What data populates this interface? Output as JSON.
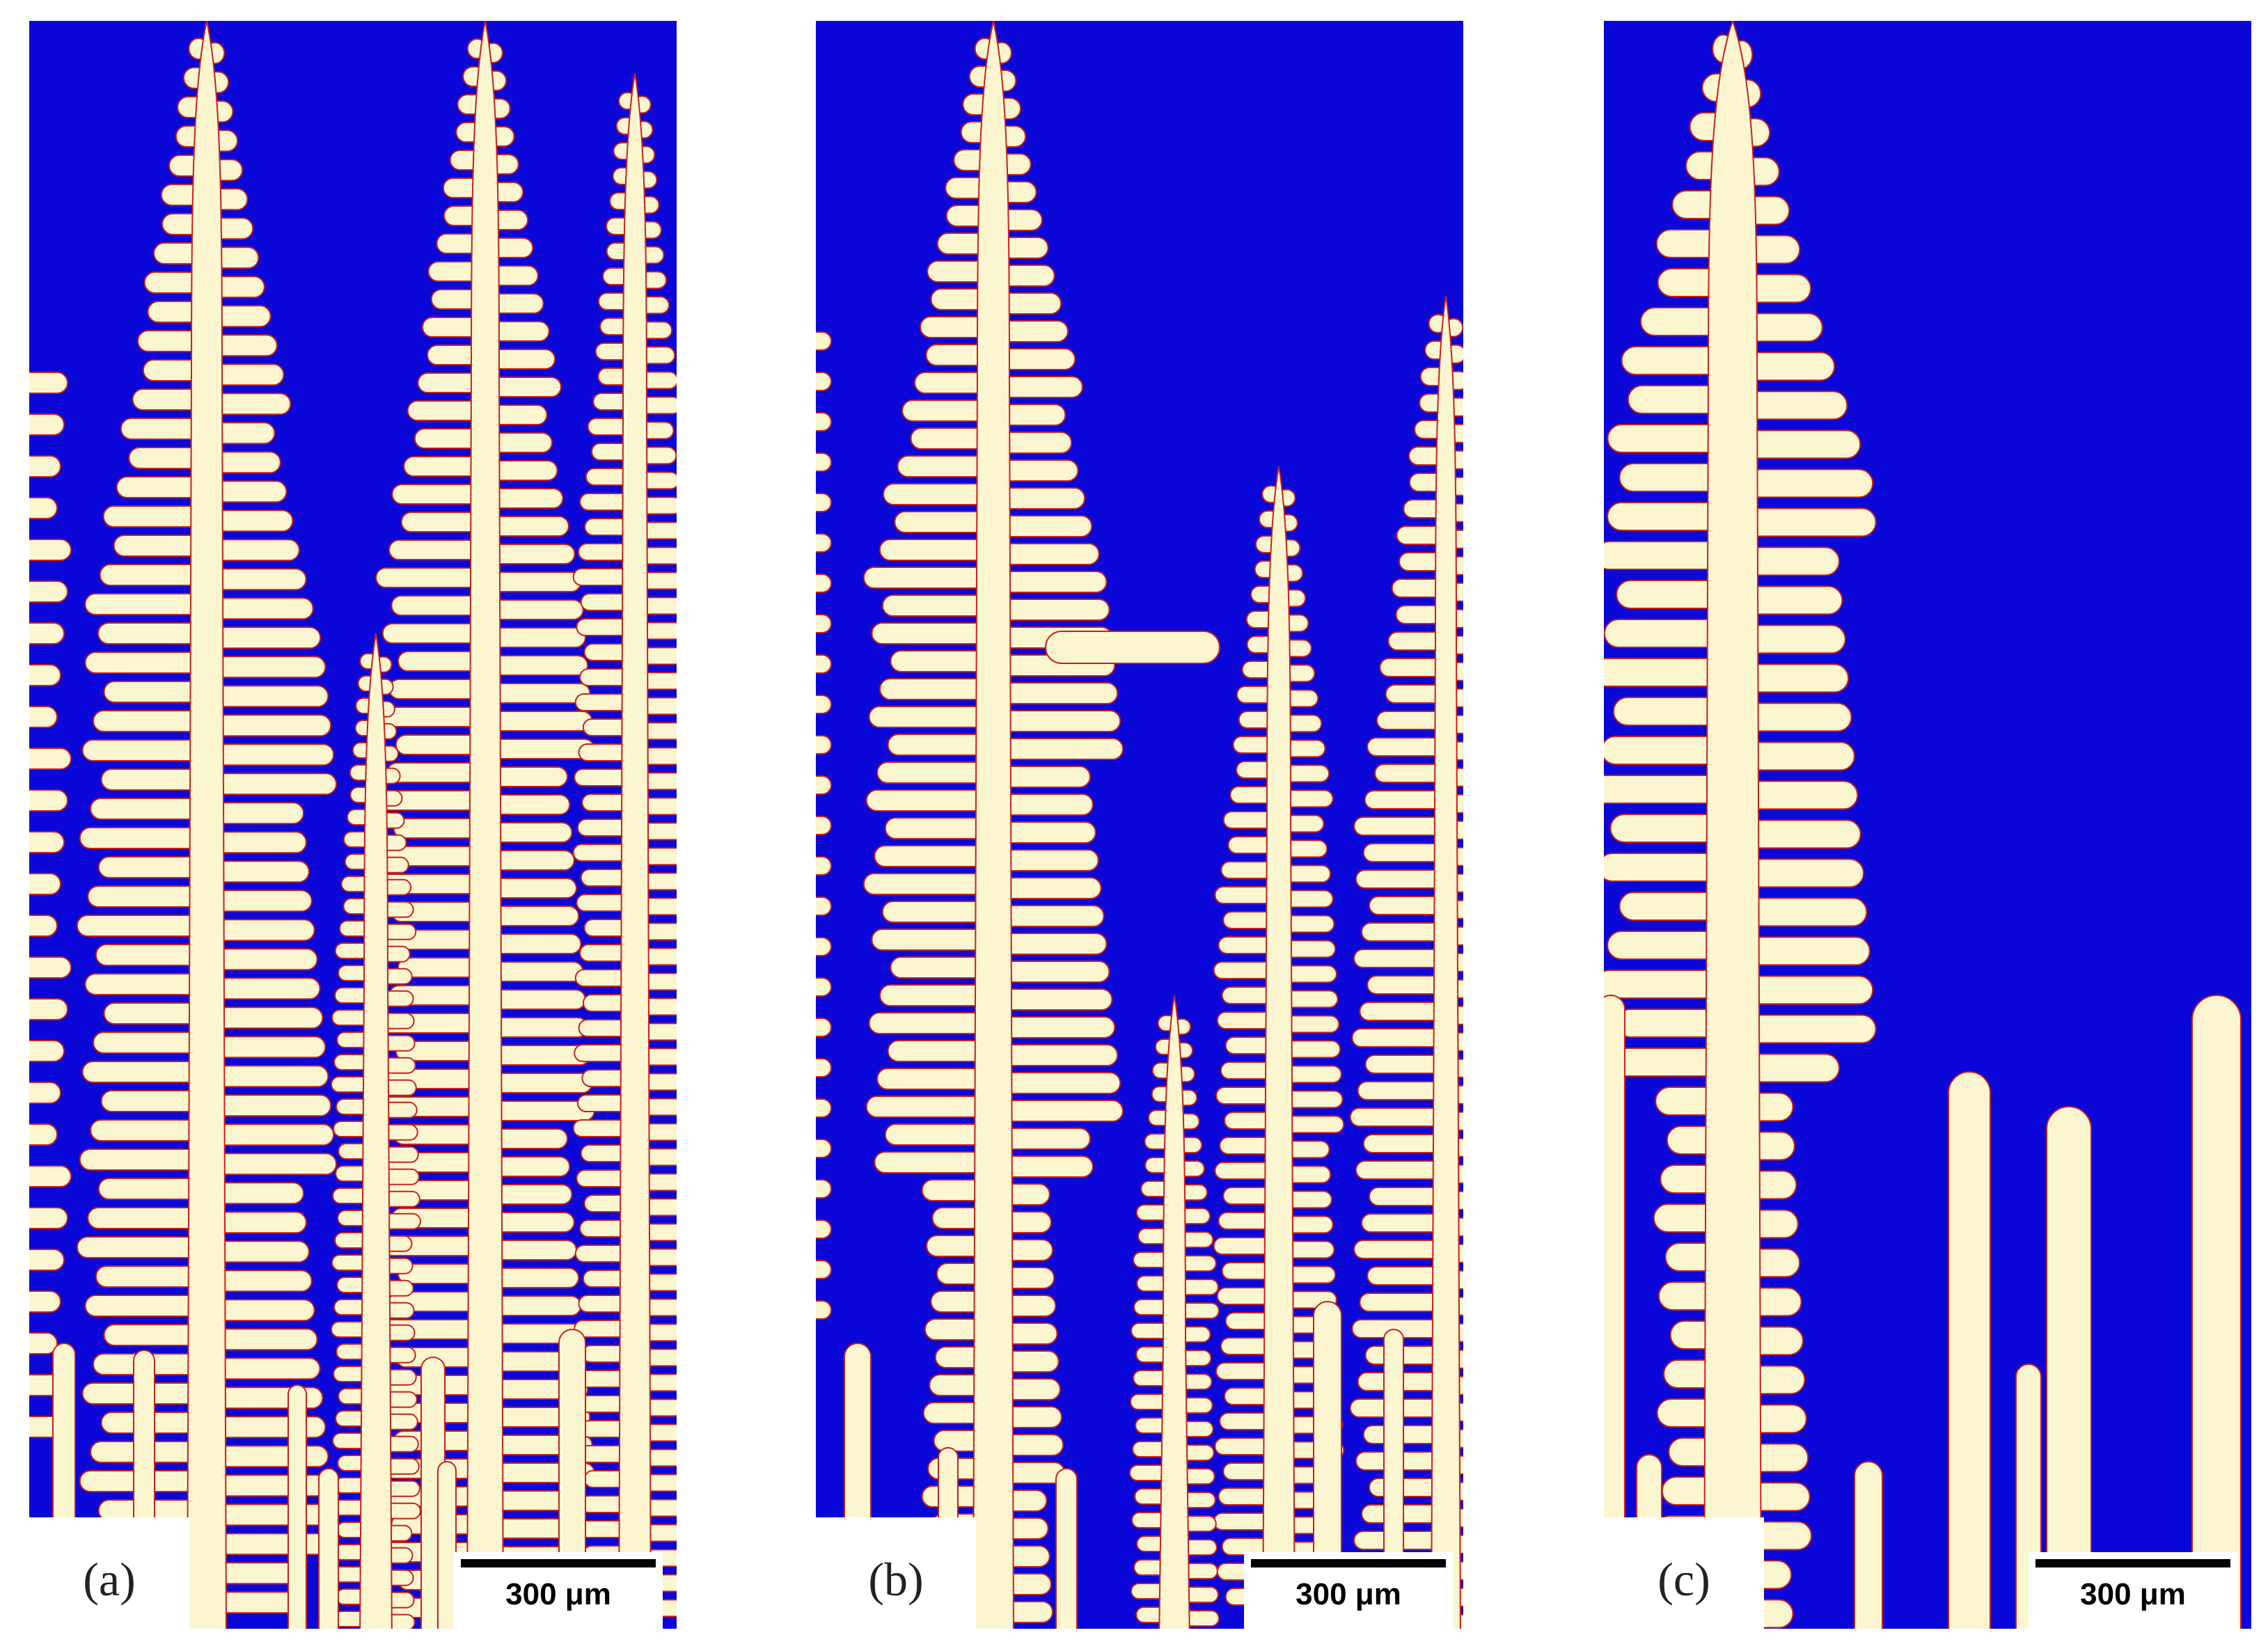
{
  "colors": {
    "liquid": "#0b07d8",
    "solid": "#fbf6cf",
    "interface": "#c8201c",
    "background": "#ffffff"
  },
  "panels": [
    {
      "id": "a",
      "label": "(a)",
      "scalebar": "300 μm"
    },
    {
      "id": "b",
      "label": "(b)",
      "scalebar": "300 μm"
    },
    {
      "id": "c",
      "label": "(c)",
      "scalebar": "300 μm"
    }
  ]
}
